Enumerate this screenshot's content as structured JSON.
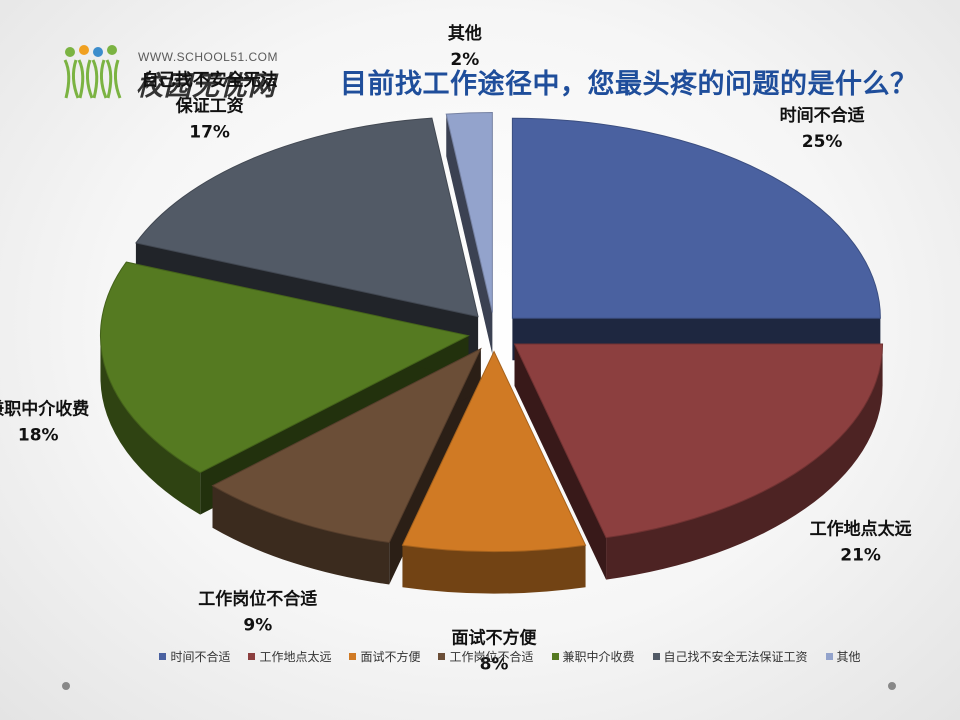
{
  "logo": {
    "url_text": "WWW.SCHOOL51.COM",
    "name": "校园无忧网"
  },
  "chart_data": {
    "type": "pie",
    "title": "目前找工作途径中，您最头疼的问题的是什么？",
    "legend_position": "bottom",
    "slices": [
      {
        "label": "时间不合适",
        "legend": "时间不合适",
        "value": 25,
        "display": "25%",
        "color": "#4a61a0",
        "label_lines": [
          "时间不合适"
        ]
      },
      {
        "label": "工作地点太远",
        "legend": "工作地点太远",
        "value": 21,
        "display": "21%",
        "color": "#8c3f3f",
        "label_lines": [
          "工作地点太远"
        ]
      },
      {
        "label": "面试不方便",
        "legend": "面试不方便",
        "value": 8,
        "display": "8%",
        "color": "#d07a24",
        "label_lines": [
          "面试不方便"
        ]
      },
      {
        "label": "工作岗位不合适",
        "legend": "工作岗位不合适",
        "value": 9,
        "display": "9%",
        "color": "#6b4e37",
        "label_lines": [
          "工作岗位不合适"
        ]
      },
      {
        "label": "兼职中介收费",
        "legend": "兼职中介收费",
        "value": 18,
        "display": "18%",
        "color": "#557a21",
        "label_lines": [
          "兼职中介收费"
        ]
      },
      {
        "label": "自己找不安全无法保证工资",
        "legend": "自己找不安全无法保证工资",
        "value": 17,
        "display": "17%",
        "color": "#525a66",
        "label_lines": [
          "自己找不安全无法",
          "保证工资"
        ]
      },
      {
        "label": "其他",
        "legend": "其他",
        "value": 2,
        "display": "2%",
        "color": "#93a3cc",
        "label_lines": [
          "其他"
        ]
      }
    ]
  }
}
